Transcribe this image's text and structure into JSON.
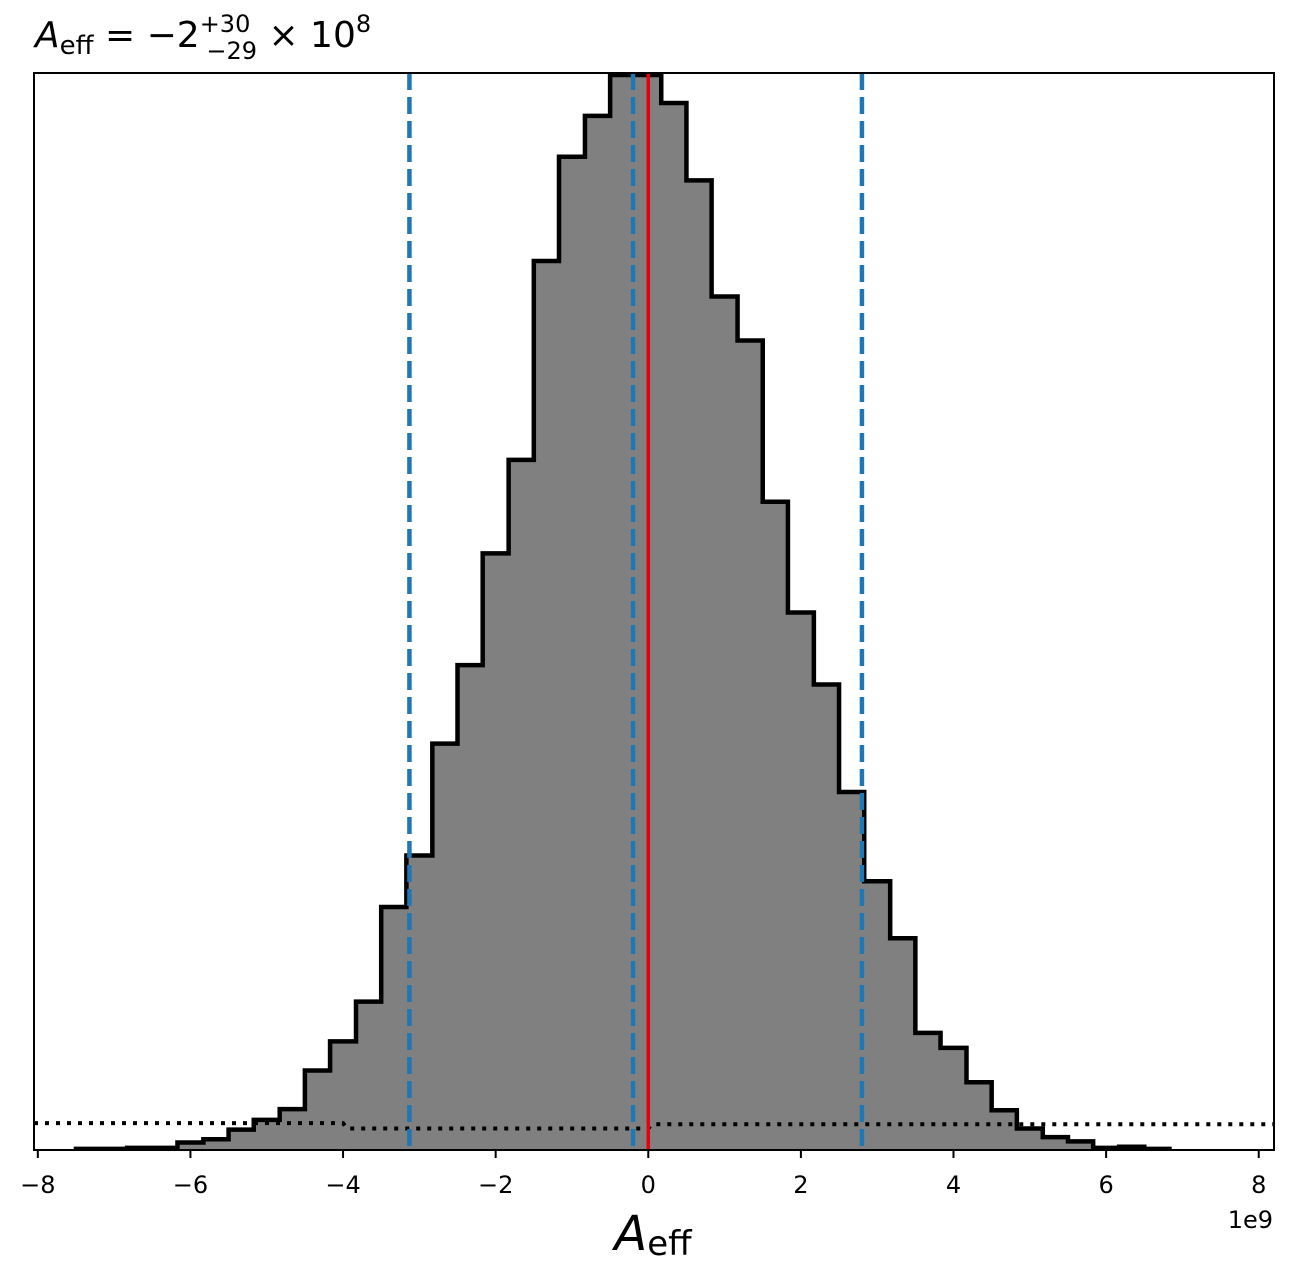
{
  "chart_data": {
    "type": "histogram",
    "title": {
      "symbol": "A",
      "symbol_sub": "eff",
      "equals": " = −2",
      "err_plus": "+30",
      "err_minus": "−29",
      "times": " × 10",
      "exponent": "8"
    },
    "xlabel": {
      "symbol": "A",
      "sub": "eff"
    },
    "offset_label": "1e9",
    "xlim": [
      -8.05,
      8.2
    ],
    "ylim": [
      0,
      1.0
    ],
    "x_scale_factor": 1000000000,
    "xticks": [
      -8,
      -6,
      -4,
      -2,
      0,
      2,
      4,
      6,
      8
    ],
    "xtick_labels": [
      "−8",
      "−6",
      "−4",
      "−2",
      "0",
      "2",
      "4",
      "6",
      "8"
    ],
    "yticks_shown": false,
    "grid": false,
    "histogram": {
      "fill_color": "#808080",
      "edge_color": "#000000",
      "edges": [
        -7.5,
        -7.17,
        -6.83,
        -6.5,
        -6.17,
        -5.83,
        -5.5,
        -5.17,
        -4.83,
        -4.5,
        -4.17,
        -3.83,
        -3.5,
        -3.17,
        -2.83,
        -2.5,
        -2.17,
        -1.83,
        -1.5,
        -1.17,
        -0.83,
        -0.5,
        -0.17,
        0.17,
        0.5,
        0.83,
        1.17,
        1.5,
        1.83,
        2.17,
        2.5,
        2.83,
        3.17,
        3.5,
        3.83,
        4.17,
        4.5,
        4.83,
        5.17,
        5.5,
        5.83,
        6.17,
        6.5,
        6.83
      ],
      "heights": [
        0.001,
        0.001,
        0.002,
        0.002,
        0.007,
        0.01,
        0.019,
        0.028,
        0.038,
        0.074,
        0.101,
        0.138,
        0.226,
        0.274,
        0.378,
        0.451,
        0.555,
        0.642,
        0.827,
        0.924,
        0.962,
        1.0,
        1.0,
        0.974,
        0.902,
        0.794,
        0.753,
        0.603,
        0.5,
        0.433,
        0.333,
        0.25,
        0.197,
        0.109,
        0.095,
        0.063,
        0.037,
        0.02,
        0.012,
        0.008,
        0.002,
        0.003,
        0.001
      ]
    },
    "vertical_lines": [
      {
        "name": "lower-quantile",
        "x": -3.13,
        "color": "#1f77b4",
        "style": "dashed"
      },
      {
        "name": "median",
        "x": -0.2,
        "color": "#1f77b4",
        "style": "dashed"
      },
      {
        "name": "upper-quantile",
        "x": 2.8,
        "color": "#1f77b4",
        "style": "dashed"
      },
      {
        "name": "true-value",
        "x": 0,
        "color": "#e8000b",
        "style": "solid"
      }
    ],
    "prior_curve": {
      "color": "#000000",
      "style": "dotted",
      "x": [
        -8.05,
        -4.0,
        -3.95,
        0.0,
        0.05,
        8.2
      ],
      "y": [
        0.025,
        0.025,
        0.02,
        0.02,
        0.024,
        0.024
      ]
    }
  }
}
